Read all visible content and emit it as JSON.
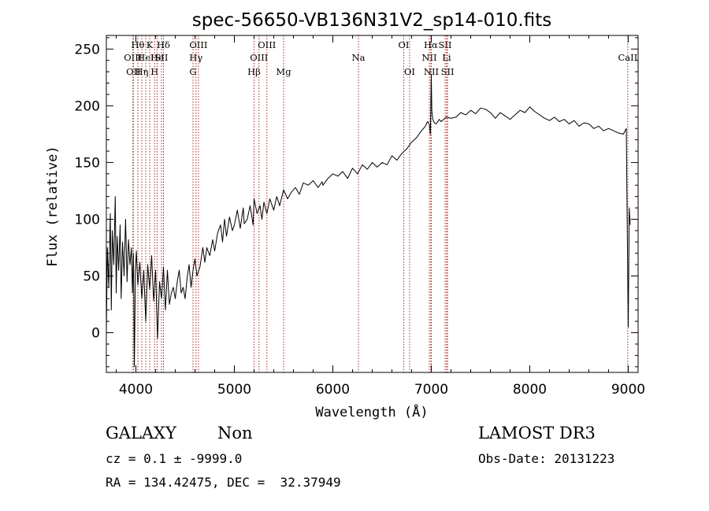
{
  "chart_data": {
    "type": "line",
    "title": "spec-56650-VB136N31V2_sp14-010.fits",
    "xlabel": "Wavelength (Å)",
    "ylabel": "Flux (relative)",
    "xlim": [
      3700,
      9100
    ],
    "ylim": [
      -35,
      262
    ],
    "xticks": [
      4000,
      5000,
      6000,
      7000,
      8000,
      9000
    ],
    "yticks": [
      0,
      50,
      100,
      150,
      200,
      250
    ],
    "grid": false,
    "series": [
      {
        "color": "#000000",
        "x": [
          3700,
          3710,
          3725,
          3740,
          3750,
          3760,
          3775,
          3790,
          3800,
          3810,
          3825,
          3840,
          3850,
          3865,
          3880,
          3895,
          3910,
          3925,
          3940,
          3955,
          3965,
          3975,
          3985,
          3995,
          4005,
          4020,
          4040,
          4060,
          4080,
          4100,
          4120,
          4140,
          4160,
          4180,
          4200,
          4220,
          4240,
          4260,
          4280,
          4300,
          4320,
          4340,
          4360,
          4380,
          4400,
          4420,
          4440,
          4460,
          4480,
          4500,
          4520,
          4540,
          4560,
          4580,
          4600,
          4620,
          4650,
          4680,
          4700,
          4720,
          4750,
          4780,
          4800,
          4830,
          4860,
          4880,
          4900,
          4920,
          4950,
          4980,
          5000,
          5030,
          5060,
          5090,
          5100,
          5130,
          5160,
          5190,
          5200,
          5230,
          5260,
          5280,
          5300,
          5330,
          5360,
          5400,
          5430,
          5460,
          5500,
          5540,
          5580,
          5620,
          5660,
          5700,
          5750,
          5800,
          5850,
          5890,
          5900,
          5950,
          6000,
          6050,
          6100,
          6150,
          6200,
          6250,
          6300,
          6350,
          6400,
          6450,
          6500,
          6550,
          6600,
          6650,
          6700,
          6750,
          6800,
          6850,
          6900,
          6940,
          6960,
          6980,
          6990,
          7000,
          7005,
          7015,
          7030,
          7050,
          7080,
          7100,
          7150,
          7200,
          7250,
          7300,
          7350,
          7400,
          7450,
          7500,
          7550,
          7600,
          7650,
          7700,
          7750,
          7800,
          7850,
          7900,
          7950,
          8000,
          8050,
          8100,
          8150,
          8200,
          8250,
          8300,
          8350,
          8400,
          8450,
          8500,
          8550,
          8600,
          8650,
          8700,
          8750,
          8800,
          8850,
          8900,
          8950,
          8980,
          9000,
          9010,
          9020
        ],
        "values": [
          0,
          75,
          40,
          105,
          20,
          90,
          60,
          120,
          35,
          85,
          55,
          95,
          30,
          80,
          50,
          100,
          45,
          82,
          60,
          75,
          35,
          70,
          -30,
          55,
          72,
          42,
          62,
          30,
          55,
          10,
          60,
          38,
          68,
          28,
          55,
          -5,
          45,
          30,
          58,
          20,
          55,
          25,
          35,
          40,
          30,
          45,
          55,
          35,
          40,
          30,
          48,
          60,
          40,
          55,
          65,
          50,
          58,
          75,
          62,
          75,
          68,
          82,
          72,
          88,
          95,
          80,
          100,
          85,
          102,
          90,
          95,
          108,
          92,
          110,
          96,
          100,
          112,
          95,
          118,
          105,
          112,
          100,
          115,
          105,
          118,
          108,
          120,
          112,
          126,
          118,
          124,
          128,
          122,
          132,
          130,
          134,
          128,
          133,
          130,
          136,
          140,
          138,
          142,
          136,
          145,
          140,
          148,
          144,
          150,
          146,
          150,
          148,
          156,
          152,
          158,
          162,
          168,
          172,
          178,
          182,
          186,
          184,
          175,
          228,
          196,
          188,
          185,
          184,
          188,
          186,
          190,
          189,
          190,
          194,
          192,
          196,
          193,
          198,
          197,
          194,
          189,
          194,
          191,
          188,
          192,
          196,
          194,
          199,
          195,
          192,
          189,
          187,
          190,
          186,
          188,
          184,
          187,
          182,
          185,
          184,
          180,
          182,
          178,
          180,
          178,
          176,
          175,
          180,
          5,
          110,
          95
        ]
      }
    ],
    "lines": [
      {
        "x": 3970,
        "label": "OIII",
        "row": 1
      },
      {
        "x": 3975,
        "label": "OII",
        "row": 2
      },
      {
        "x": 4020,
        "label": "Hθ",
        "row": 0
      },
      {
        "x": 4060,
        "label": "Hη",
        "row": 2
      },
      {
        "x": 4100,
        "label": "HeI",
        "row": 1
      },
      {
        "x": 4140,
        "label": "K",
        "row": 0
      },
      {
        "x": 4190,
        "label": "H",
        "row": 2
      },
      {
        "x": 4215,
        "label": "He",
        "row": 1
      },
      {
        "x": 4260,
        "label": "SII",
        "row": 1
      },
      {
        "x": 4280,
        "label": "Hδ",
        "row": 0
      },
      {
        "x": 4580,
        "label": "G",
        "row": 2
      },
      {
        "x": 4610,
        "label": "Hγ",
        "row": 1
      },
      {
        "x": 4635,
        "label": "OIII",
        "row": 0
      },
      {
        "x": 5200,
        "label": "Hβ",
        "row": 2
      },
      {
        "x": 5250,
        "label": "OIII",
        "row": 1
      },
      {
        "x": 5330,
        "label": "OIII",
        "row": 0
      },
      {
        "x": 5500,
        "label": "Mg",
        "row": 2
      },
      {
        "x": 6260,
        "label": "Na",
        "row": 1
      },
      {
        "x": 6720,
        "label": "OI",
        "row": 0
      },
      {
        "x": 6780,
        "label": "OI",
        "row": 2
      },
      {
        "x": 6980,
        "label": "NII",
        "row": 1
      },
      {
        "x": 6995,
        "label": "Hα",
        "row": 0
      },
      {
        "x": 7000,
        "label": "NII",
        "row": 2
      },
      {
        "x": 7140,
        "label": "SII",
        "row": 0
      },
      {
        "x": 7155,
        "label": "Li",
        "row": 1
      },
      {
        "x": 7165,
        "label": "SII",
        "row": 2
      },
      {
        "x": 8995,
        "label": "CaII",
        "row": 1
      }
    ]
  },
  "info": {
    "object_class": "GALAXY",
    "subclass": "Non",
    "survey": "LAMOST DR3",
    "redshift": "cz = 0.1 ± -9999.0",
    "obs_date": "Obs-Date: 20131223",
    "coords": "RA = 134.42475, DEC =  32.37949"
  }
}
